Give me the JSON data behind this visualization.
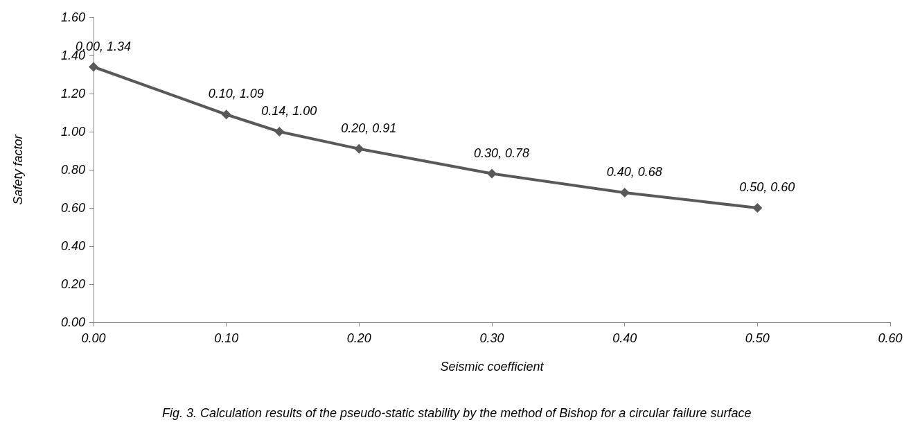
{
  "chart_data": {
    "type": "line",
    "xlabel": "Seismic coefficient",
    "ylabel": "Safety factor",
    "x": [
      0,
      0.1,
      0.14,
      0.2,
      0.3,
      0.4,
      0.5
    ],
    "series": [
      {
        "color": "#595959",
        "values": [
          1.34,
          1.09,
          1.0,
          0.91,
          0.78,
          0.68,
          0.6
        ],
        "value_labels": [
          "0.00, 1.34",
          "0.10, 1.09",
          "0.14, 1.00",
          "0.20, 0.91",
          "0.30, 0.78",
          "0.40, 0.68",
          "0.50, 0.60"
        ]
      }
    ],
    "xlim": [
      0,
      0.6
    ],
    "xticks": [
      {
        "value": 0,
        "label": "0.00"
      },
      {
        "value": 0.1,
        "label": "0.10"
      },
      {
        "value": 0.2,
        "label": "0.20"
      },
      {
        "value": 0.3,
        "label": "0.30"
      },
      {
        "value": 0.4,
        "label": "0.40"
      },
      {
        "value": 0.5,
        "label": "0.50"
      },
      {
        "value": 0.6,
        "label": "0.60"
      }
    ],
    "ylim": [
      0,
      1.6
    ],
    "yticks": [
      {
        "value": 0,
        "label": "0.00"
      },
      {
        "value": 0.2,
        "label": "0.20"
      },
      {
        "value": 0.4,
        "label": "0.40"
      },
      {
        "value": 0.6,
        "label": "0.60"
      },
      {
        "value": 0.8,
        "label": "0.80"
      },
      {
        "value": 1.0,
        "label": "1.00"
      },
      {
        "value": 1.2,
        "label": "1.20"
      },
      {
        "value": 1.4,
        "label": "1.40"
      },
      {
        "value": 1.6,
        "label": "1.60"
      }
    ],
    "grid": false,
    "marker": "diamond",
    "line_style": "solid",
    "annotations": [
      "Fig. 3. Calculation results of the pseudo-static stability by the method of Bishop for a circular failure surface"
    ]
  }
}
